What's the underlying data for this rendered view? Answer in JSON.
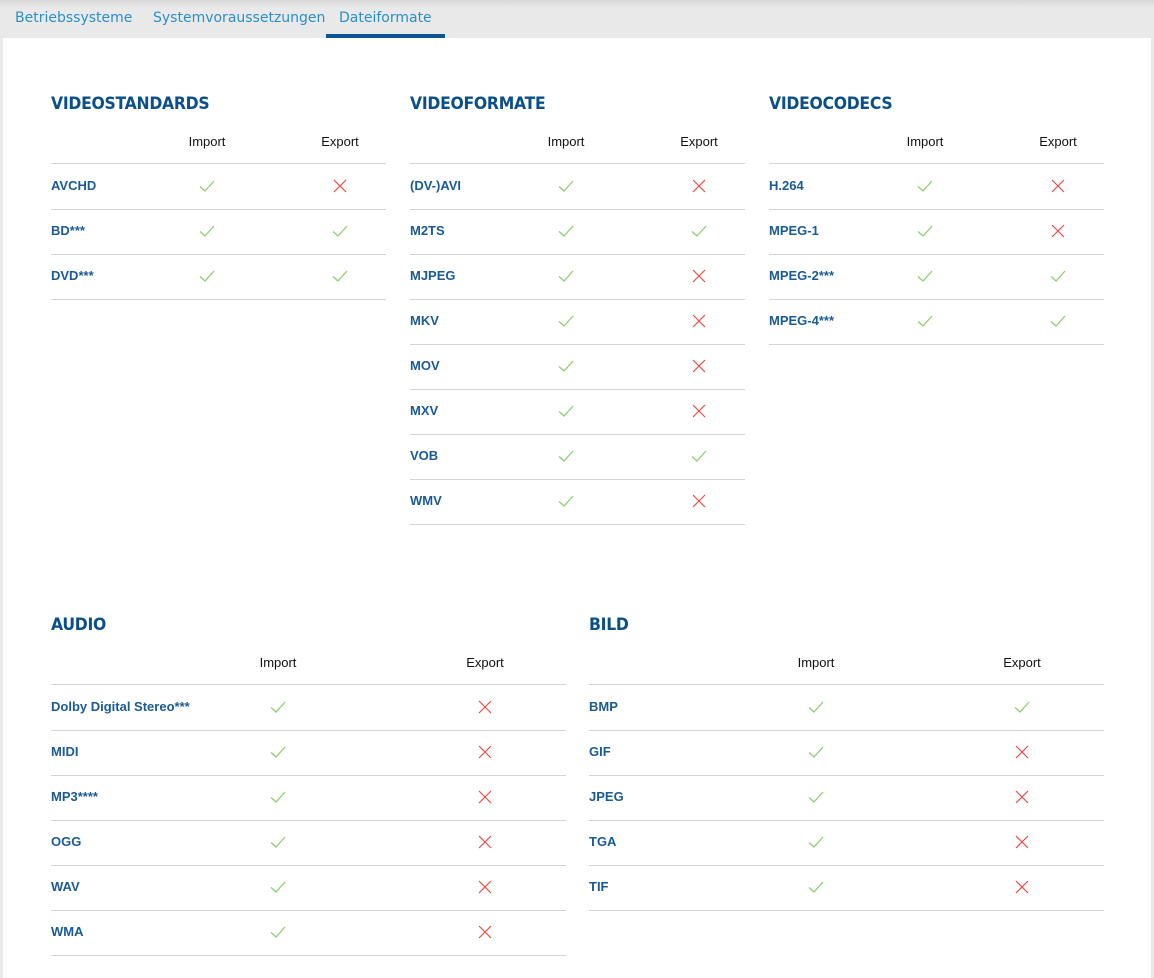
{
  "tabs": [
    {
      "label": "Betriebssysteme"
    },
    {
      "label": "Systemvoraussetzungen"
    },
    {
      "label": "Dateiformate",
      "active": true
    }
  ],
  "colors": {
    "accent": "#0b5595",
    "title": "#0b4f8a",
    "check": "#8ccf6e",
    "cross": "#ec4a43"
  },
  "tables": [
    {
      "title": "VIDEOSTANDARDS",
      "import_label": "Import",
      "export_label": "Export",
      "rows": [
        {
          "name": "AVCHD",
          "import": true,
          "export": false
        },
        {
          "name": "BD***",
          "import": true,
          "export": true
        },
        {
          "name": "DVD***",
          "import": true,
          "export": true
        }
      ]
    },
    {
      "title": "VIDEOFORMATE",
      "import_label": "Import",
      "export_label": "Export",
      "rows": [
        {
          "name": "(DV-)AVI",
          "import": true,
          "export": false
        },
        {
          "name": "M2TS",
          "import": true,
          "export": true
        },
        {
          "name": "MJPEG",
          "import": true,
          "export": false
        },
        {
          "name": "MKV",
          "import": true,
          "export": false
        },
        {
          "name": "MOV",
          "import": true,
          "export": false
        },
        {
          "name": "MXV",
          "import": true,
          "export": false
        },
        {
          "name": "VOB",
          "import": true,
          "export": true
        },
        {
          "name": "WMV",
          "import": true,
          "export": false
        }
      ]
    },
    {
      "title": "VIDEOCODECS",
      "import_label": "Import",
      "export_label": "Export",
      "rows": [
        {
          "name": "H.264",
          "import": true,
          "export": false
        },
        {
          "name": "MPEG-1",
          "import": true,
          "export": false
        },
        {
          "name": "MPEG-2***",
          "import": true,
          "export": true
        },
        {
          "name": "MPEG-4***",
          "import": true,
          "export": true
        }
      ]
    },
    {
      "title": "AUDIO",
      "import_label": "Import",
      "export_label": "Export",
      "rows": [
        {
          "name": "Dolby Digital Stereo***",
          "import": true,
          "export": false
        },
        {
          "name": "MIDI",
          "import": true,
          "export": false
        },
        {
          "name": "MP3****",
          "import": true,
          "export": false
        },
        {
          "name": "OGG",
          "import": true,
          "export": false
        },
        {
          "name": "WAV",
          "import": true,
          "export": false
        },
        {
          "name": "WMA",
          "import": true,
          "export": false
        }
      ]
    },
    {
      "title": "BILD",
      "import_label": "Import",
      "export_label": "Export",
      "rows": [
        {
          "name": "BMP",
          "import": true,
          "export": true
        },
        {
          "name": "GIF",
          "import": true,
          "export": false
        },
        {
          "name": "JPEG",
          "import": true,
          "export": false
        },
        {
          "name": "TGA",
          "import": true,
          "export": false
        },
        {
          "name": "TIF",
          "import": true,
          "export": false
        }
      ]
    }
  ]
}
